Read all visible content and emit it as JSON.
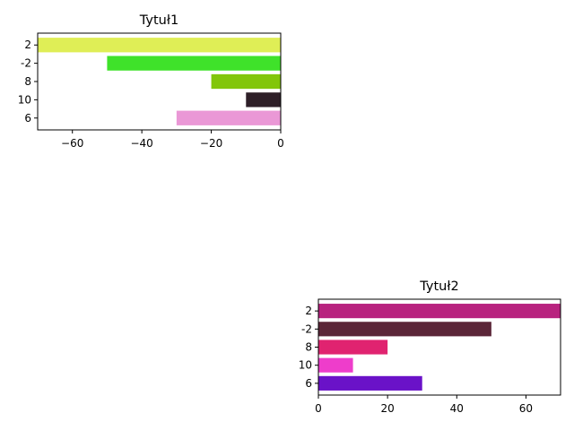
{
  "chart_data": [
    {
      "type": "bar",
      "orientation": "horizontal",
      "title": "Tytuł1",
      "categories": [
        "2",
        "-2",
        "8",
        "10",
        "6"
      ],
      "values": [
        -70,
        -50,
        -20,
        -10,
        -30
      ],
      "colors": [
        "#dfee56",
        "#3fe22a",
        "#82c60a",
        "#2e1f28",
        "#ea98d6"
      ],
      "xlim": [
        -70,
        0
      ],
      "xticks": [
        -60,
        -40,
        -20,
        0
      ],
      "xtick_labels": [
        "−60",
        "−40",
        "−20",
        "0"
      ],
      "xlabel": "",
      "ylabel": "",
      "grid": false
    },
    {
      "type": "bar",
      "orientation": "horizontal",
      "title": "Tytuł2",
      "categories": [
        "2",
        "-2",
        "8",
        "10",
        "6"
      ],
      "values": [
        70,
        50,
        20,
        10,
        30
      ],
      "colors": [
        "#b8237f",
        "#5b2638",
        "#e02370",
        "#ee3dcb",
        "#6a12c8"
      ],
      "xlim": [
        0,
        70
      ],
      "xticks": [
        0,
        20,
        40,
        60
      ],
      "xtick_labels": [
        "0",
        "20",
        "40",
        "60"
      ],
      "xlabel": "",
      "ylabel": "",
      "grid": false
    }
  ]
}
